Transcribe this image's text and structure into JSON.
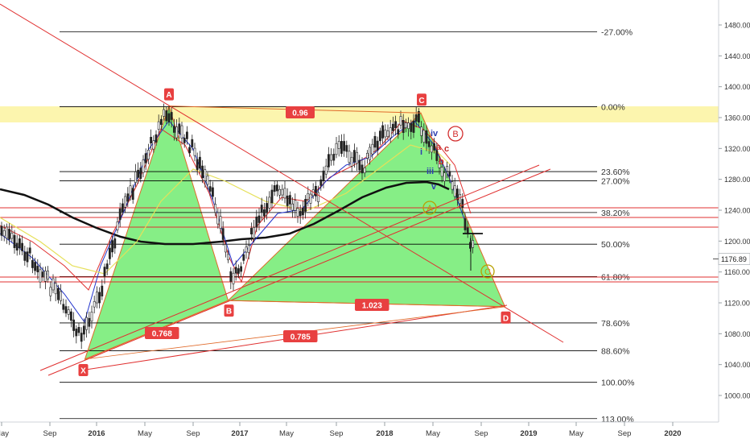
{
  "chart_data": {
    "type": "candlestick",
    "title": "",
    "symbol_price_label": "1176.89",
    "x_ticks": [
      "May",
      "Sep",
      "2016",
      "May",
      "Sep",
      "2017",
      "May",
      "Sep",
      "2018",
      "May",
      "Sep",
      "2019",
      "May",
      "Sep",
      "2020"
    ],
    "x_tick_dates": [
      "2015-05",
      "2015-09",
      "2016-01",
      "2016-05",
      "2016-09",
      "2017-01",
      "2017-05",
      "2017-09",
      "2018-01",
      "2018-05",
      "2018-09",
      "2019-01",
      "2019-05",
      "2019-09",
      "2020-01"
    ],
    "y_ticks": [
      "1480.00",
      "1440.00",
      "1400.00",
      "1360.00",
      "1320.00",
      "1280.00",
      "1240.00",
      "1200.00",
      "1160.00",
      "1120.00",
      "1080.00",
      "1040.00",
      "1000.00"
    ],
    "ylim": [
      970,
      1500
    ],
    "grid": false,
    "fib_levels": [
      {
        "label": "-27.00%",
        "value": 1471
      },
      {
        "label": "0.00%",
        "value": 1374
      },
      {
        "label": "23.60%",
        "value": 1290
      },
      {
        "label": "27.00%",
        "value": 1278
      },
      {
        "label": "38.20%",
        "value": 1237
      },
      {
        "label": "50.00%",
        "value": 1196
      },
      {
        "label": "61.80%",
        "value": 1154
      },
      {
        "label": "78.60%",
        "value": 1094
      },
      {
        "label": "88.60%",
        "value": 1058
      },
      {
        "label": "100.00%",
        "value": 1017
      },
      {
        "label": "113.00%",
        "value": 970
      }
    ],
    "harmonic_points": [
      {
        "label": "X",
        "date": "2015-12",
        "value": 1047
      },
      {
        "label": "A",
        "date": "2016-07",
        "value": 1375
      },
      {
        "label": "B",
        "date": "2016-12",
        "value": 1123
      },
      {
        "label": "C",
        "date": "2018-04",
        "value": 1366
      },
      {
        "label": "D",
        "date": "2018-11",
        "value": 1115
      }
    ],
    "ratios": [
      {
        "label": "0.96"
      },
      {
        "label": "0.768"
      },
      {
        "label": "1.023"
      },
      {
        "label": "0.785"
      }
    ],
    "wave_labels": [
      {
        "label": "iv",
        "color": "#2f3fb0"
      },
      {
        "label": "i",
        "color": "#2f3fb0"
      },
      {
        "label": "iii",
        "color": "#2f3fb0"
      },
      {
        "label": "v",
        "color": "#2f3fb0"
      },
      {
        "label": "a",
        "color": "#c62828"
      },
      {
        "label": "b",
        "color": "#c62828"
      },
      {
        "label": "c",
        "color": "#c62828"
      }
    ],
    "circled_labels": [
      {
        "label": "B",
        "color": "#d32f2f"
      },
      {
        "label": "A",
        "color": "#b8a000"
      },
      {
        "label": "C",
        "color": "#b8a000"
      }
    ],
    "colors": {
      "pattern_fill": "#5ee85e",
      "pattern_line": "#e06a2a",
      "fib_line": "#000000",
      "sr_line": "#e03030",
      "trend_line": "#e03030",
      "ma_long": "#111111",
      "ma_short_red": "#e03030",
      "ma_short_blue": "#2233cc",
      "ma_yellow": "#e6e05a",
      "highlight_zone": "#fbf3a0",
      "label_red": "#e84040"
    }
  }
}
